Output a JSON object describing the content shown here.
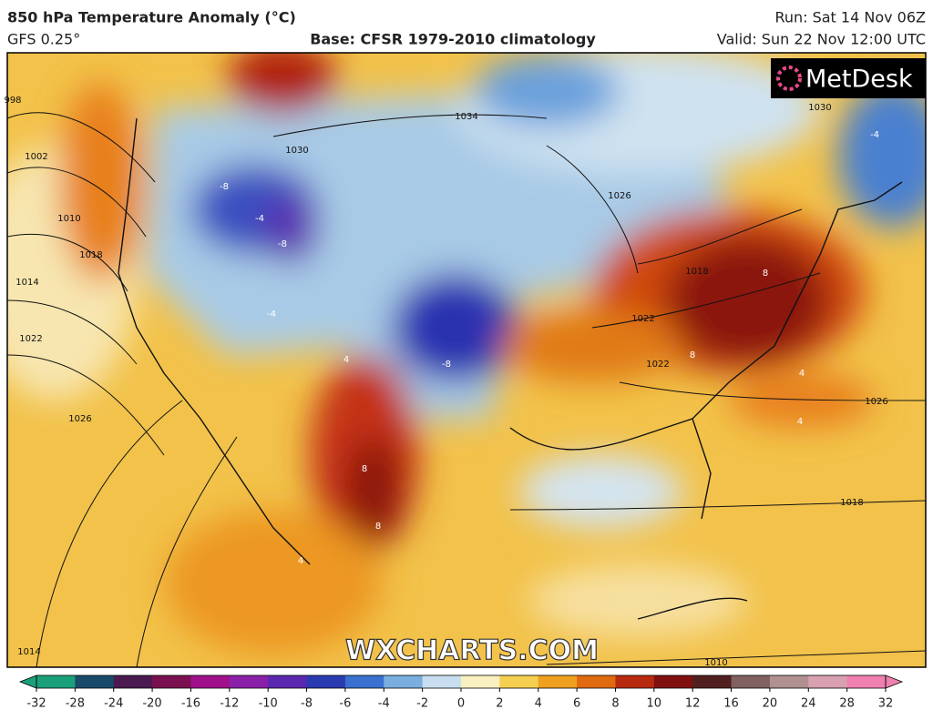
{
  "header": {
    "title": "850 hPa Temperature Anomaly (°C)",
    "model": "GFS 0.25°",
    "base": "Base: CFSR 1979-2010 climatology",
    "run": "Run: Sat 14 Nov 06Z",
    "valid": "Valid: Sun 22 Nov 12:00 UTC"
  },
  "logo": "MetDesk",
  "watermark": "WXCHARTS.COM",
  "isobar_labels": [
    "998",
    "1002",
    "1010",
    "1018",
    "1014",
    "1022",
    "1026",
    "1034",
    "1030",
    "1030",
    "1026",
    "1018",
    "1022",
    "1022",
    "1026",
    "1018",
    "1014",
    "1010"
  ],
  "anomaly_labels": [
    "-8",
    "-4",
    "-8",
    "-4",
    "-8",
    "4",
    "8",
    "8",
    "8",
    "8",
    "4",
    "4",
    "-4",
    "4"
  ],
  "colorbar": {
    "ticks": [
      -32,
      -28,
      -24,
      -20,
      -16,
      -12,
      -10,
      -8,
      -6,
      -4,
      -2,
      0,
      2,
      4,
      6,
      8,
      10,
      12,
      16,
      20,
      24,
      28,
      32
    ],
    "colors": [
      "#1aa07a",
      "#1a4a6a",
      "#4a1a50",
      "#7a1050",
      "#a0108a",
      "#8a20a8",
      "#5a28b0",
      "#2a3ab0",
      "#3a70d0",
      "#7aaee0",
      "#c8def0",
      "#f8f0c0",
      "#f5cf50",
      "#f0a020",
      "#e06a10",
      "#b82a10",
      "#801010",
      "#502020",
      "#806060",
      "#b09090",
      "#d8a0b0",
      "#f080b0"
    ]
  }
}
